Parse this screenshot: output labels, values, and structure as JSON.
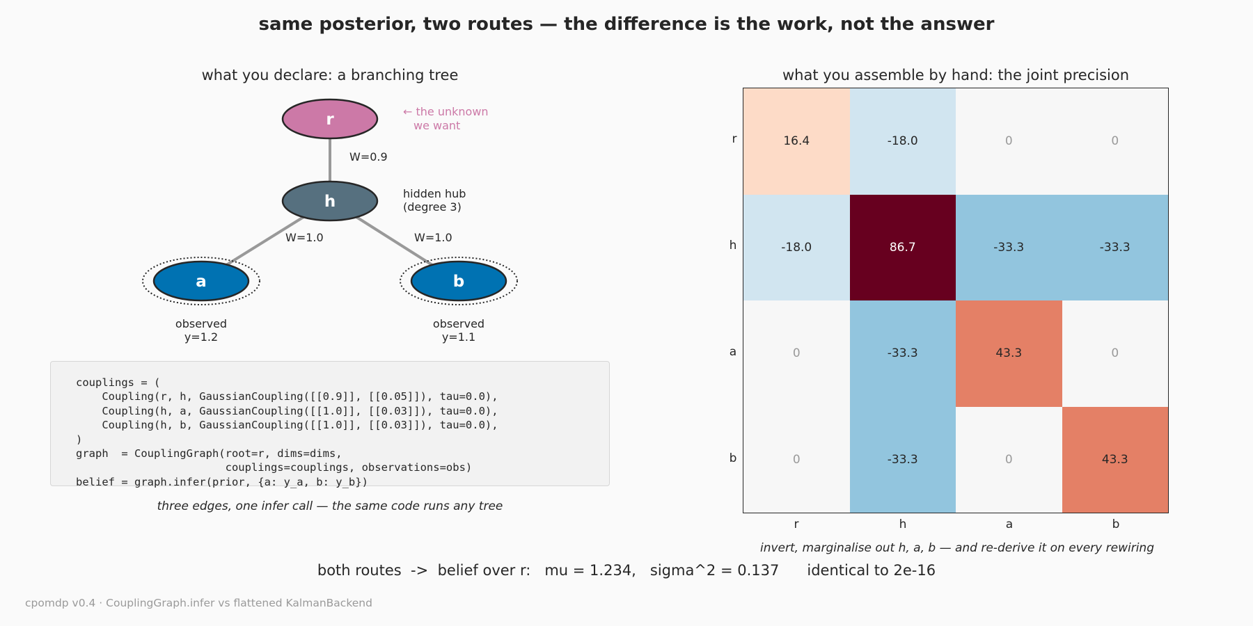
{
  "title": "same posterior, two routes — the difference is the work, not the answer",
  "left_panel": {
    "title": "what you declare:  a branching tree",
    "nodes": {
      "r": {
        "label": "r",
        "color": "#cc79a7"
      },
      "h": {
        "label": "h",
        "color": "#56707f"
      },
      "a": {
        "label": "a",
        "color": "#0072b2"
      },
      "b": {
        "label": "b",
        "color": "#0072b2"
      }
    },
    "edges": {
      "r_h": "W=0.9",
      "h_a": "W=1.0",
      "h_b": "W=1.0"
    },
    "annotations": {
      "unknown_line1": "← the unknown",
      "unknown_line2": "we want",
      "hub_line1": "hidden hub",
      "hub_line2": "(degree 3)",
      "a_obs_line1": "observed",
      "a_obs_line2": "y=1.2",
      "b_obs_line1": "observed",
      "b_obs_line2": "y=1.1"
    },
    "code": "couplings = (\n    Coupling(r, h, GaussianCoupling([[0.9]], [[0.05]]), tau=0.0),\n    Coupling(h, a, GaussianCoupling([[1.0]], [[0.03]]), tau=0.0),\n    Coupling(h, b, GaussianCoupling([[1.0]], [[0.03]]), tau=0.0),\n)\ngraph  = CouplingGraph(root=r, dims=dims,\n                       couplings=couplings, observations=obs)\nbelief = graph.infer(prior, {a: y_a, b: y_b})",
    "code_caption": "three edges, one infer call — the same code runs any tree"
  },
  "right_panel": {
    "title": "what you assemble by hand:  the joint precision",
    "row_labels": [
      "r",
      "h",
      "a",
      "b"
    ],
    "col_labels": [
      "r",
      "h",
      "a",
      "b"
    ],
    "cells": [
      [
        "16.4",
        "-18.0",
        "0",
        "0"
      ],
      [
        "-18.0",
        "86.7",
        "-33.3",
        "-33.3"
      ],
      [
        "0",
        "-33.3",
        "43.3",
        "0"
      ],
      [
        "0",
        "-33.3",
        "0",
        "43.3"
      ]
    ],
    "cell_colors": [
      [
        "#fddbc7",
        "#d1e5f0",
        "#f7f7f7",
        "#f7f7f7"
      ],
      [
        "#d1e5f0",
        "#67001f",
        "#92c5de",
        "#92c5de"
      ],
      [
        "#f7f7f7",
        "#92c5de",
        "#e48066",
        "#f7f7f7"
      ],
      [
        "#f7f7f7",
        "#92c5de",
        "#f7f7f7",
        "#e48066"
      ]
    ],
    "cell_text_colors": [
      [
        "#262626",
        "#262626",
        "#9a9a9a",
        "#9a9a9a"
      ],
      [
        "#262626",
        "#ffffff",
        "#262626",
        "#262626"
      ],
      [
        "#9a9a9a",
        "#262626",
        "#262626",
        "#9a9a9a"
      ],
      [
        "#9a9a9a",
        "#262626",
        "#9a9a9a",
        "#262626"
      ]
    ],
    "caption": "invert, marginalise out h, a, b — and re-derive it on every rewiring"
  },
  "summary": "both routes  ->  belief over r:   mu = 1.234,   sigma^2 = 0.137      identical to 2e-16",
  "footer": "cpomdp v0.4  ·  CouplingGraph.infer vs flattened KalmanBackend"
}
